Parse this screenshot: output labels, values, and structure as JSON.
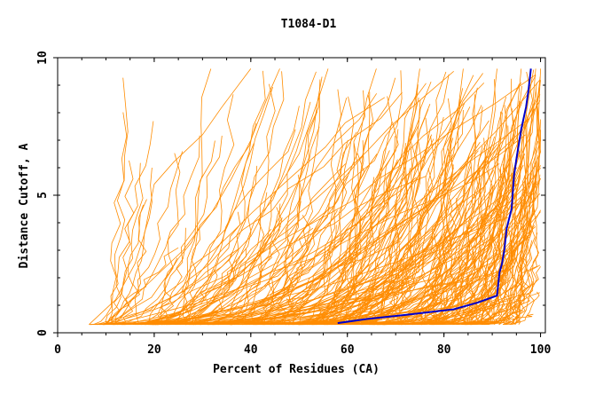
{
  "chart_data": {
    "type": "line",
    "title": "T1084-D1",
    "xlabel": "Percent of Residues (CA)",
    "ylabel": "Distance Cutoff, A",
    "xlim": [
      0,
      101
    ],
    "ylim": [
      0,
      10
    ],
    "x_ticks": [
      "0",
      "20",
      "40",
      "60",
      "80",
      "100"
    ],
    "y_ticks": [
      "0",
      "5",
      "10"
    ],
    "grid": false,
    "legend": "none",
    "colors": {
      "background_curves": "#ff8c00",
      "highlight": "#0000cc",
      "axes": "#000000"
    },
    "background_curves_note": "About 300 orange cumulative curves (one per model); representative samples listed",
    "background_curves": [
      {
        "x": [
          6.5,
          12,
          16,
          18,
          20,
          24,
          30,
          34,
          40
        ],
        "y": [
          0.3,
          1.2,
          2.5,
          3.6,
          5.4,
          6.2,
          7.2,
          8.2,
          9.6
        ]
      },
      {
        "x": [
          10,
          14,
          20,
          26,
          32,
          36,
          40,
          44,
          46
        ],
        "y": [
          0.3,
          1.0,
          2.0,
          3.0,
          4.4,
          5.6,
          7.0,
          8.8,
          9.6
        ]
      },
      {
        "x": [
          11,
          18,
          26,
          34,
          40,
          44,
          50,
          54,
          56
        ],
        "y": [
          0.3,
          0.8,
          1.5,
          2.4,
          3.5,
          4.8,
          6.5,
          8.5,
          9.6
        ]
      },
      {
        "x": [
          14,
          24,
          34,
          44,
          52,
          58,
          62,
          64,
          66
        ],
        "y": [
          0.3,
          0.7,
          1.3,
          2.2,
          3.3,
          4.8,
          6.5,
          8.5,
          9.6
        ]
      },
      {
        "x": [
          18,
          30,
          42,
          54,
          62,
          68,
          72,
          74,
          75
        ],
        "y": [
          0.3,
          0.6,
          1.1,
          2.0,
          3.2,
          4.6,
          6.4,
          8.4,
          9.6
        ]
      },
      {
        "x": [
          22,
          36,
          50,
          62,
          70,
          76,
          80,
          83,
          84
        ],
        "y": [
          0.3,
          0.5,
          1.0,
          1.8,
          3.0,
          4.4,
          6.2,
          8.2,
          9.6
        ]
      },
      {
        "x": [
          28,
          44,
          58,
          70,
          78,
          84,
          88,
          90,
          91
        ],
        "y": [
          0.3,
          0.5,
          0.9,
          1.6,
          2.7,
          4.0,
          5.8,
          8.0,
          9.6
        ]
      },
      {
        "x": [
          36,
          52,
          66,
          78,
          86,
          90,
          93,
          95,
          96
        ],
        "y": [
          0.3,
          0.5,
          0.8,
          1.4,
          2.4,
          3.6,
          5.4,
          7.8,
          9.6
        ]
      },
      {
        "x": [
          44,
          60,
          74,
          84,
          90,
          94,
          97,
          98,
          99
        ],
        "y": [
          0.3,
          0.5,
          0.8,
          1.3,
          2.2,
          3.3,
          5.0,
          7.5,
          9.6
        ]
      },
      {
        "x": [
          50,
          66,
          80,
          88,
          92,
          96,
          98,
          99.5,
          100
        ],
        "y": [
          0.3,
          0.5,
          0.8,
          1.3,
          2.0,
          3.0,
          4.8,
          7.4,
          9.6
        ]
      }
    ],
    "series": [
      {
        "name": "",
        "color": "#0000cc",
        "x": [
          58,
          64,
          72,
          82,
          87,
          91,
          91.5,
          92,
          92.5,
          93,
          94,
          94.5,
          95,
          96,
          97,
          97.5,
          98
        ],
        "y": [
          0.35,
          0.5,
          0.65,
          0.85,
          1.1,
          1.35,
          2.2,
          2.5,
          3.0,
          3.8,
          4.5,
          5.7,
          6.3,
          7.4,
          8.2,
          8.8,
          9.6
        ]
      }
    ]
  }
}
